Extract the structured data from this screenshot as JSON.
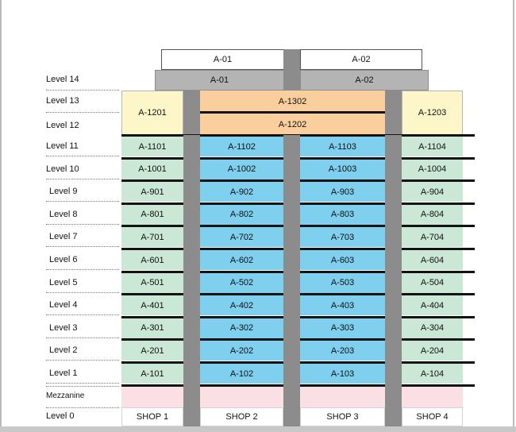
{
  "levels": {
    "l14": "Level 14",
    "l13": "Level 13",
    "l12": "Level 12",
    "l11": "Level 11",
    "l10": "Level 10",
    "l9": "Level 9",
    "l8": "Level 8",
    "l7": "Level 7",
    "l6": "Level 6",
    "l5": "Level 5",
    "l4": "Level 4",
    "l3": "Level 3",
    "l2": "Level 2",
    "l1": "Level 1",
    "mezz": "Mezzanine",
    "l0": "Level 0"
  },
  "penthouse": {
    "roof": [
      "A-01",
      "A-02"
    ],
    "level14": [
      "A-01",
      "A-02"
    ]
  },
  "upper": {
    "a1201": "A-1201",
    "a1302": "A-1302",
    "a1202": "A-1202",
    "a1203": "A-1203"
  },
  "units": [
    {
      "level": "Level 11",
      "cells": [
        "A-1101",
        "A-1102",
        "A-1103",
        "A-1104"
      ]
    },
    {
      "level": "Level 10",
      "cells": [
        "A-1001",
        "A-1002",
        "A-1003",
        "A-1004"
      ]
    },
    {
      "level": "Level 9",
      "cells": [
        "A-901",
        "A-902",
        "A-903",
        "A-904"
      ]
    },
    {
      "level": "Level 8",
      "cells": [
        "A-801",
        "A-802",
        "A-803",
        "A-804"
      ]
    },
    {
      "level": "Level 7",
      "cells": [
        "A-701",
        "A-702",
        "A-703",
        "A-704"
      ]
    },
    {
      "level": "Level 6",
      "cells": [
        "A-601",
        "A-602",
        "A-603",
        "A-604"
      ]
    },
    {
      "level": "Level 5",
      "cells": [
        "A-501",
        "A-502",
        "A-503",
        "A-504"
      ]
    },
    {
      "level": "Level 4",
      "cells": [
        "A-401",
        "A-402",
        "A-403",
        "A-404"
      ]
    },
    {
      "level": "Level 3",
      "cells": [
        "A-301",
        "A-302",
        "A-303",
        "A-304"
      ]
    },
    {
      "level": "Level 2",
      "cells": [
        "A-201",
        "A-202",
        "A-203",
        "A-204"
      ]
    },
    {
      "level": "Level 1",
      "cells": [
        "A-101",
        "A-102",
        "A-103",
        "A-104"
      ]
    }
  ],
  "shops": [
    "SHOP 1",
    "SHOP 2",
    "SHOP 3",
    "SHOP 4"
  ],
  "colors": {
    "unit_edge": "#cbe7d6",
    "unit_center": "#7fcfee",
    "duplex": "#fbcf9d",
    "corner_duplex": "#fdf6c9",
    "mezzanine": "#fae0e4",
    "core": "#8c8c8c"
  }
}
